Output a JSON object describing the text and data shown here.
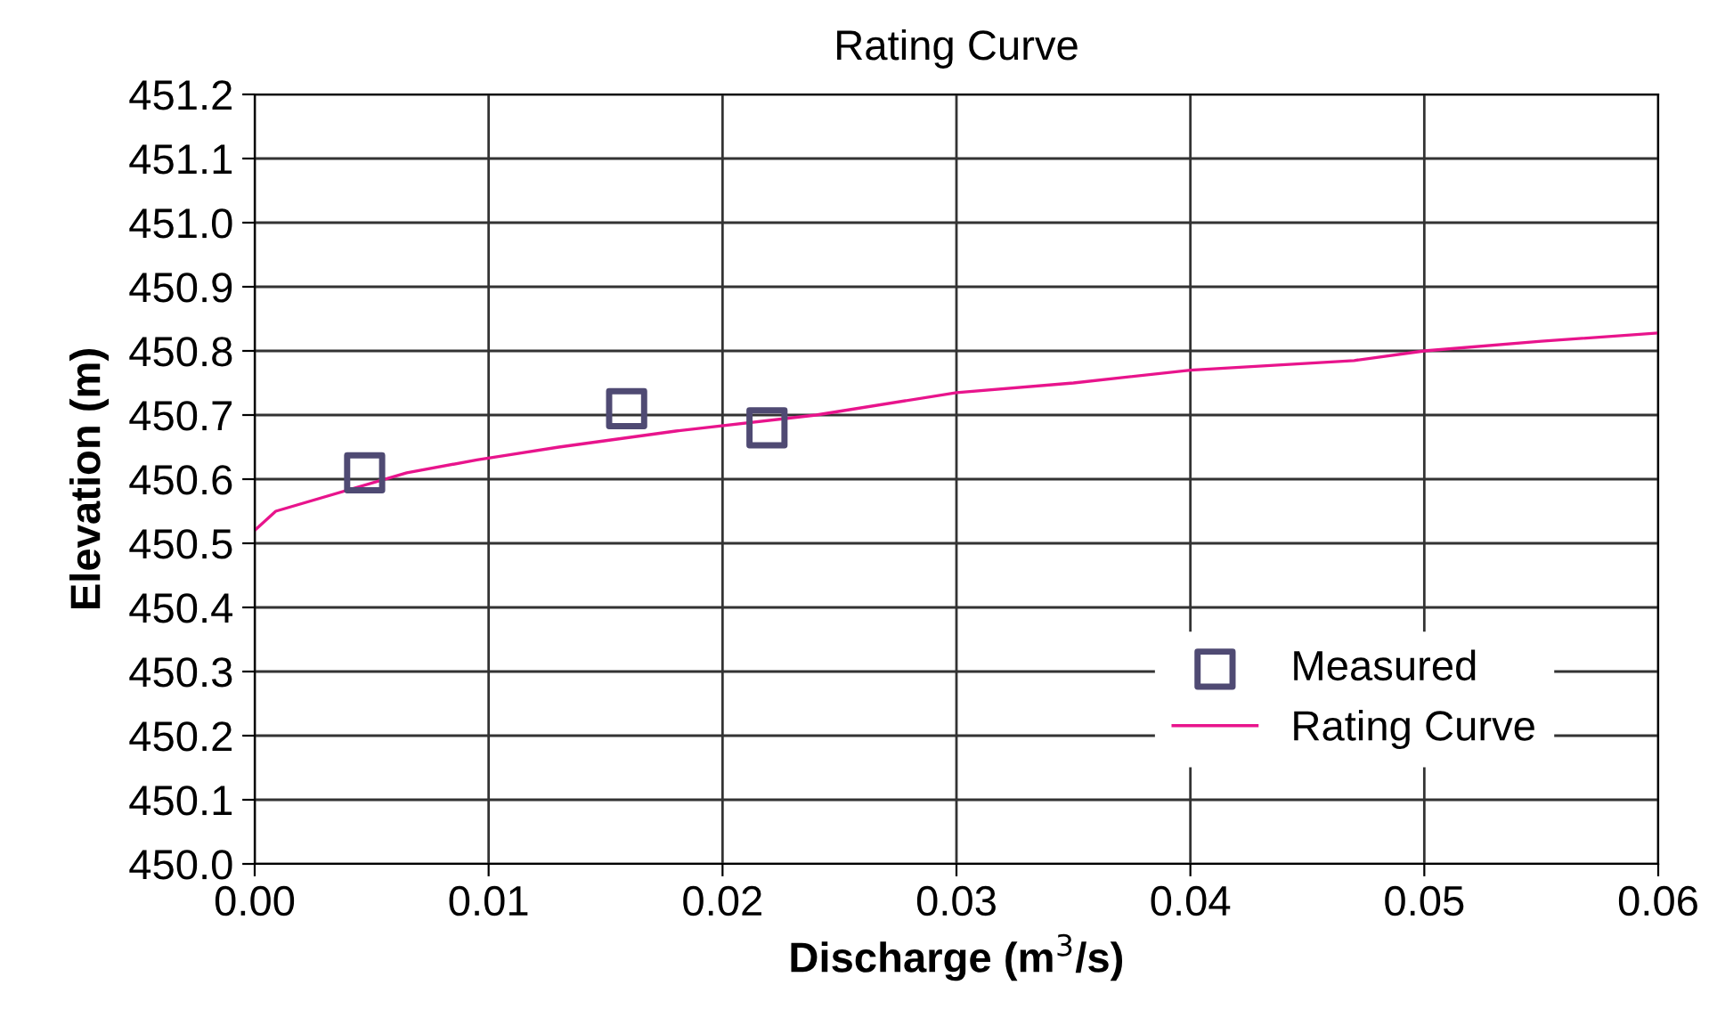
{
  "chart_data": {
    "type": "line",
    "title": "Rating Curve",
    "xlabel": "Discharge (m$^{3}$/s)",
    "ylabel": "Elevation (m)",
    "xlim": [
      0,
      0.06
    ],
    "xticks": [
      {
        "value": 0,
        "label": "0.00"
      },
      {
        "value": 0.01,
        "label": "0.01"
      },
      {
        "value": 0.02,
        "label": "0.02"
      },
      {
        "value": 0.03,
        "label": "0.03"
      },
      {
        "value": 0.04,
        "label": "0.04"
      },
      {
        "value": 0.05,
        "label": "0.05"
      },
      {
        "value": 0.06,
        "label": "0.06"
      }
    ],
    "ylim": [
      450.0,
      451.2
    ],
    "yticks": [
      {
        "value": 450.0,
        "label": "450.0"
      },
      {
        "value": 450.1,
        "label": "450.1"
      },
      {
        "value": 450.2,
        "label": "450.2"
      },
      {
        "value": 450.3,
        "label": "450.3"
      },
      {
        "value": 450.4,
        "label": "450.4"
      },
      {
        "value": 450.5,
        "label": "450.5"
      },
      {
        "value": 450.6,
        "label": "450.6"
      },
      {
        "value": 450.7,
        "label": "450.7"
      },
      {
        "value": 450.8,
        "label": "450.8"
      },
      {
        "value": 450.9,
        "label": "450.9"
      },
      {
        "value": 451.0,
        "label": "451.0"
      },
      {
        "value": 451.1,
        "label": "451.1"
      },
      {
        "value": 451.2,
        "label": "451.2"
      }
    ],
    "grid": true,
    "legend": "bottom right",
    "series": [
      {
        "name": "Measured",
        "type": "scatter",
        "marker": "square",
        "color": "#4f4a73",
        "x": [
          0.0047,
          0.0159,
          0.0219
        ],
        "values": [
          450.61,
          450.71,
          450.68
        ]
      },
      {
        "name": "Rating Curve",
        "marker": "none",
        "color": "#e8148c",
        "x": [
          0,
          0.0009,
          0.0065,
          0.0095,
          0.013,
          0.018,
          0.024,
          0.03,
          0.035,
          0.04,
          0.047,
          0.05,
          0.055,
          0.06
        ],
        "values": [
          450.52,
          450.55,
          450.61,
          450.63,
          450.65,
          450.675,
          450.7,
          450.735,
          450.75,
          450.77,
          450.785,
          450.8,
          450.815,
          450.828
        ]
      }
    ]
  }
}
